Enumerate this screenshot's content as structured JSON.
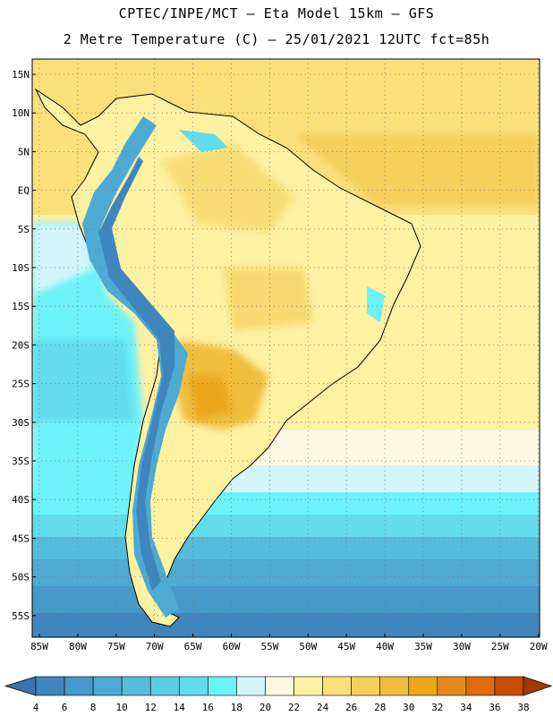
{
  "header": {
    "line1": "CPTEC/INPE/MCT –  Eta Model 15km – GFS",
    "line2": "2 Metre Temperature (C) – 25/01/2021 12UTC fct=85h"
  },
  "map": {
    "lat_labels": [
      "15N",
      "10N",
      "5N",
      "EQ",
      "5S",
      "10S",
      "15S",
      "20S",
      "25S",
      "30S",
      "35S",
      "40S",
      "45S",
      "50S",
      "55S"
    ],
    "lon_labels": [
      "85W",
      "80W",
      "75W",
      "70W",
      "65W",
      "60W",
      "55W",
      "50W",
      "45W",
      "40W",
      "35W",
      "30W",
      "25W",
      "20W"
    ]
  },
  "colorbar": {
    "labels": [
      "4",
      "6",
      "8",
      "10",
      "12",
      "14",
      "16",
      "18",
      "20",
      "22",
      "24",
      "26",
      "28",
      "30",
      "32",
      "34",
      "36",
      "38"
    ],
    "colors": [
      "#3a73b0",
      "#3f86bf",
      "#4699c8",
      "#4eaad2",
      "#56bcdc",
      "#5ccce4",
      "#62dcec",
      "#6cf2fa",
      "#d2f5fb",
      "#fdf8e2",
      "#fdf1a2",
      "#fae07a",
      "#f5d05c",
      "#f0be3c",
      "#eda61c",
      "#e6891c",
      "#dd6c10",
      "#c84b06",
      "#a83800"
    ]
  }
}
